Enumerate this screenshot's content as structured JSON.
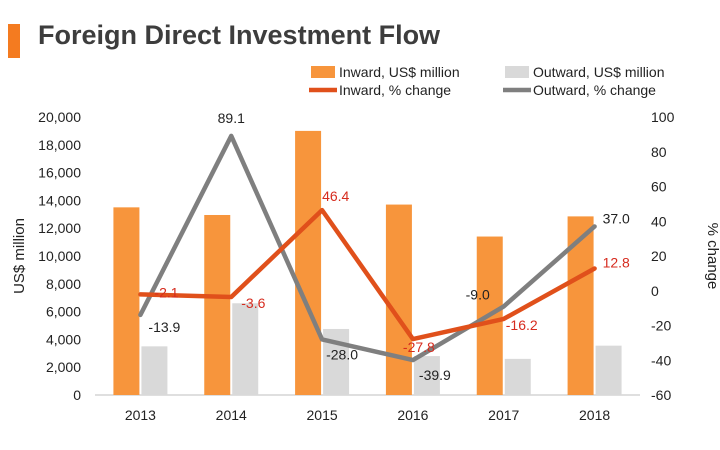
{
  "title": "Foreign Direct Investment Flow",
  "colors": {
    "inward_bar": "#f7953c",
    "outward_bar": "#d9d9d9",
    "inward_line": "#e0501b",
    "outward_line": "#7f7f7f",
    "title_accent": "#f47b20",
    "inward_label": "#d62b1e"
  },
  "chart_data": {
    "type": "bar+line",
    "categories": [
      "2013",
      "2014",
      "2015",
      "2016",
      "2017",
      "2018"
    ],
    "ylabel": "US$ million",
    "y2label": "% change",
    "ylim": [
      0,
      20000
    ],
    "y_ticks": [
      "0",
      "2,000",
      "4,000",
      "6,000",
      "8,000",
      "10,000",
      "12,000",
      "14,000",
      "16,000",
      "18,000",
      "20,000"
    ],
    "y2lim": [
      -60,
      100
    ],
    "y2_ticks": [
      "-60",
      "-40",
      "-20",
      "0",
      "20",
      "40",
      "60",
      "80",
      "100"
    ],
    "legend_position": "top",
    "bar_series": [
      {
        "name": "Inward, US$ million",
        "values": [
          13500,
          12950,
          19000,
          13700,
          11400,
          12850
        ]
      },
      {
        "name": "Outward, US$ million",
        "values": [
          3500,
          6600,
          4750,
          2800,
          2600,
          3550
        ]
      }
    ],
    "line_series": [
      {
        "name": "Inward, % change",
        "values": [
          -2.1,
          -3.6,
          46.4,
          -27.8,
          -16.2,
          12.8
        ],
        "labels": [
          "-2.1",
          "-3.6",
          "46.4",
          "-27.8",
          "-16.2",
          "12.8"
        ]
      },
      {
        "name": "Outward, % change",
        "values": [
          -13.9,
          89.1,
          -28.0,
          -39.9,
          -9.0,
          37.0
        ],
        "labels": [
          "-13.9",
          "89.1",
          "-28.0",
          "-39.9",
          "-9.0",
          "37.0"
        ]
      }
    ]
  }
}
